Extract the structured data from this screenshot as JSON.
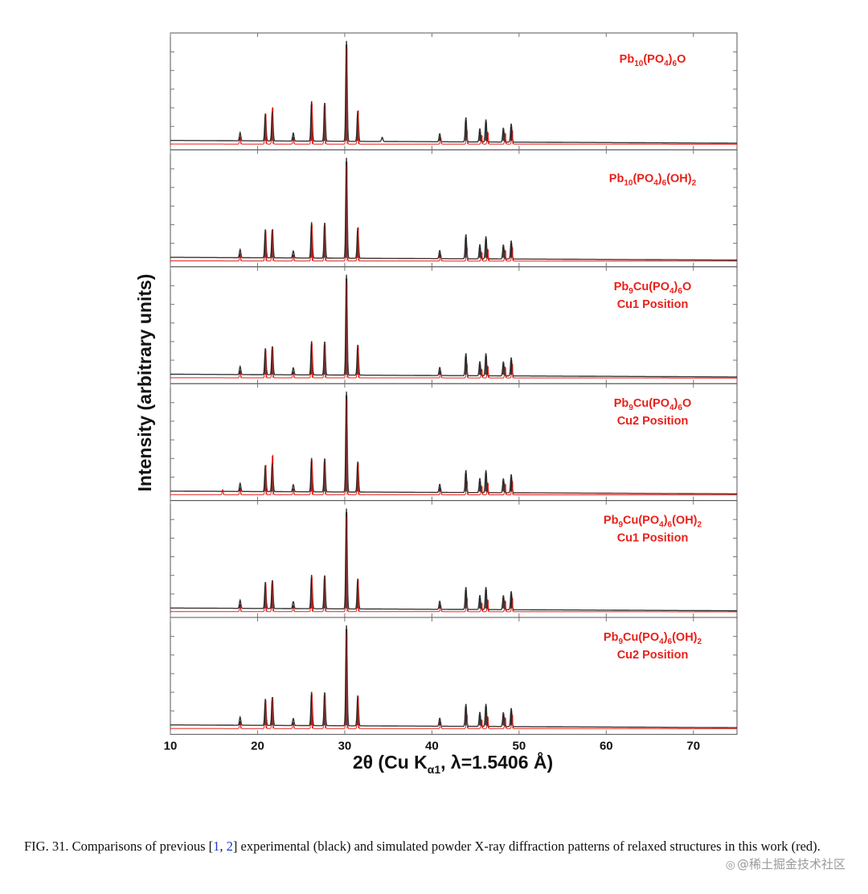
{
  "chart_data": {
    "type": "line",
    "title": "",
    "xlabel": "2θ (Cu K",
    "xlabel_sub": "α1",
    "xlabel_suffix": ", λ=1.5406 Å)",
    "ylabel": "Intensity (arbitrary units)",
    "xlim": [
      10,
      75
    ],
    "xticks": [
      10,
      20,
      30,
      40,
      50,
      60,
      70
    ],
    "ylim": [
      0,
      100
    ],
    "grid": false,
    "series_colors": {
      "experimental": "#222222",
      "simulated": "#e8201a"
    },
    "panels": [
      {
        "label_line1": [
          {
            "t": "Pb"
          },
          {
            "t": "10",
            "sub": true
          },
          {
            "t": "(PO"
          },
          {
            "t": "4",
            "sub": true
          },
          {
            "t": ")"
          },
          {
            "t": "6",
            "sub": true
          },
          {
            "t": "O"
          }
        ],
        "label_line2": "",
        "experimental": {
          "x": [
            18.0,
            20.9,
            21.7,
            24.1,
            26.2,
            27.7,
            30.2,
            31.5,
            34.3,
            40.9,
            43.9,
            45.5,
            46.2,
            48.2,
            49.1
          ],
          "y": [
            8,
            27,
            29,
            8,
            39,
            38,
            98,
            30,
            4,
            8,
            24,
            13,
            22,
            14,
            18
          ]
        },
        "simulated": {
          "x": [
            18.0,
            20.9,
            21.7,
            24.1,
            26.2,
            27.7,
            30.2,
            31.5,
            41.0,
            44.0,
            45.7,
            46.4,
            48.4,
            49.2
          ],
          "y": [
            7,
            30,
            37,
            6,
            40,
            40,
            94,
            34,
            6,
            14,
            9,
            12,
            11,
            14
          ]
        }
      },
      {
        "label_line1": [
          {
            "t": "Pb"
          },
          {
            "t": "10",
            "sub": true
          },
          {
            "t": "(PO"
          },
          {
            "t": "4",
            "sub": true
          },
          {
            "t": ")"
          },
          {
            "t": "6",
            "sub": true
          },
          {
            "t": "(OH)"
          },
          {
            "t": "2",
            "sub": true
          }
        ],
        "label_line2": "",
        "experimental": {
          "x": [
            18.0,
            20.9,
            21.7,
            24.1,
            26.2,
            27.7,
            30.2,
            31.5,
            40.9,
            43.9,
            45.5,
            46.2,
            48.2,
            49.1
          ],
          "y": [
            8,
            28,
            28,
            7,
            35,
            35,
            98,
            30,
            8,
            24,
            14,
            22,
            14,
            18
          ]
        },
        "simulated": {
          "x": [
            18.0,
            20.9,
            21.7,
            24.1,
            26.2,
            27.7,
            30.2,
            31.5,
            41.0,
            44.0,
            45.7,
            46.4,
            48.4,
            49.2
          ],
          "y": [
            7,
            30,
            32,
            6,
            36,
            36,
            94,
            34,
            6,
            14,
            9,
            12,
            11,
            14
          ]
        }
      },
      {
        "label_line1": [
          {
            "t": "Pb"
          },
          {
            "t": "9",
            "sub": true
          },
          {
            "t": "Cu(PO"
          },
          {
            "t": "4",
            "sub": true
          },
          {
            "t": ")"
          },
          {
            "t": "6",
            "sub": true
          },
          {
            "t": "O"
          }
        ],
        "label_line2": "Cu1 Position",
        "experimental": {
          "x": [
            18.0,
            20.9,
            21.7,
            24.1,
            26.2,
            27.7,
            30.2,
            31.5,
            40.9,
            43.9,
            45.5,
            46.2,
            48.2,
            49.1
          ],
          "y": [
            8,
            26,
            28,
            7,
            33,
            33,
            98,
            30,
            8,
            22,
            14,
            22,
            14,
            18
          ]
        },
        "simulated": {
          "x": [
            18.0,
            20.9,
            21.7,
            24.1,
            26.2,
            27.7,
            30.2,
            31.5,
            41.0,
            44.0,
            45.7,
            46.4,
            48.4,
            49.2
          ],
          "y": [
            6,
            28,
            30,
            6,
            34,
            34,
            94,
            32,
            6,
            14,
            9,
            12,
            11,
            14
          ]
        }
      },
      {
        "label_line1": [
          {
            "t": "Pb"
          },
          {
            "t": "9",
            "sub": true
          },
          {
            "t": "Cu(PO"
          },
          {
            "t": "4",
            "sub": true
          },
          {
            "t": ")"
          },
          {
            "t": "6",
            "sub": true
          },
          {
            "t": "O"
          }
        ],
        "label_line2": "Cu2 Position",
        "experimental": {
          "x": [
            18.0,
            20.9,
            21.7,
            24.1,
            26.2,
            27.7,
            30.2,
            31.5,
            40.9,
            43.9,
            45.5,
            46.2,
            48.2,
            49.1
          ],
          "y": [
            8,
            26,
            28,
            7,
            33,
            33,
            98,
            30,
            8,
            22,
            14,
            22,
            14,
            18
          ]
        },
        "simulated": {
          "x": [
            16.0,
            18.0,
            20.9,
            21.7,
            24.1,
            26.2,
            27.7,
            30.2,
            31.5,
            41.0,
            44.0,
            45.7,
            46.4,
            48.4,
            49.2
          ],
          "y": [
            5,
            6,
            30,
            40,
            6,
            34,
            34,
            94,
            32,
            6,
            14,
            9,
            12,
            11,
            14
          ]
        }
      },
      {
        "label_line1": [
          {
            "t": "Pb"
          },
          {
            "t": "9",
            "sub": true
          },
          {
            "t": "Cu(PO"
          },
          {
            "t": "4",
            "sub": true
          },
          {
            "t": ")"
          },
          {
            "t": "6",
            "sub": true
          },
          {
            "t": "(OH)"
          },
          {
            "t": "2",
            "sub": true
          }
        ],
        "label_line2": "Cu1 Position",
        "experimental": {
          "x": [
            18.0,
            20.9,
            21.7,
            24.1,
            26.2,
            27.7,
            30.2,
            31.5,
            40.9,
            43.9,
            45.5,
            46.2,
            48.2,
            49.1
          ],
          "y": [
            8,
            26,
            28,
            7,
            33,
            33,
            98,
            30,
            8,
            22,
            14,
            22,
            14,
            18
          ]
        },
        "simulated": {
          "x": [
            18.0,
            20.9,
            21.7,
            24.1,
            26.2,
            27.7,
            30.2,
            31.5,
            41.0,
            44.0,
            45.7,
            46.4,
            48.4,
            49.2
          ],
          "y": [
            6,
            28,
            30,
            6,
            34,
            34,
            94,
            32,
            6,
            14,
            9,
            12,
            11,
            14
          ]
        }
      },
      {
        "label_line1": [
          {
            "t": "Pb"
          },
          {
            "t": "9",
            "sub": true
          },
          {
            "t": "Cu(PO"
          },
          {
            "t": "4",
            "sub": true
          },
          {
            "t": ")"
          },
          {
            "t": "6",
            "sub": true
          },
          {
            "t": "(OH)"
          },
          {
            "t": "2",
            "sub": true
          }
        ],
        "label_line2": "Cu2 Position",
        "experimental": {
          "x": [
            18.0,
            20.9,
            21.7,
            24.1,
            26.2,
            27.7,
            30.2,
            31.5,
            40.9,
            43.9,
            45.5,
            46.2,
            48.2,
            49.1
          ],
          "y": [
            8,
            26,
            28,
            7,
            33,
            33,
            98,
            30,
            8,
            22,
            14,
            22,
            14,
            18
          ]
        },
        "simulated": {
          "x": [
            18.0,
            20.9,
            21.7,
            24.1,
            26.2,
            27.7,
            30.2,
            31.5,
            41.0,
            44.0,
            45.7,
            46.4,
            48.4,
            49.2
          ],
          "y": [
            6,
            28,
            30,
            6,
            34,
            34,
            94,
            32,
            6,
            14,
            9,
            12,
            11,
            14
          ]
        }
      }
    ]
  },
  "caption": {
    "fig_label": "FIG. 31.",
    "text_before": "Comparisons of previous [",
    "ref1": "1",
    "ref_sep": ", ",
    "ref2": "2",
    "text_after": "] experimental (black) and simulated powder X-ray diffraction patterns of relaxed structures in this work (red)."
  },
  "watermark": {
    "icon": "wechat-icon",
    "text": "@稀土掘金技术社区"
  }
}
